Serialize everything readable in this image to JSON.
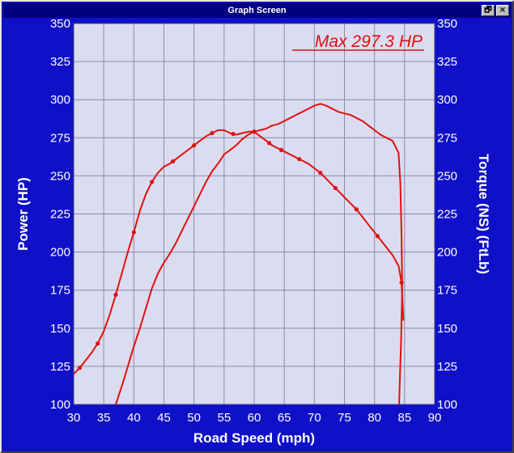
{
  "window": {
    "title": "Graph Screen",
    "buttons": [
      {
        "name": "restore-button",
        "glyph": "🗗"
      },
      {
        "name": "close-button",
        "glyph": "×"
      }
    ]
  },
  "colors": {
    "window_bg": "#1010c8",
    "plot_bg": "#dcdcf0",
    "grid": "#8a8aa8",
    "curve": "#e01010",
    "text": "#ffffff"
  },
  "chart_data": {
    "type": "line",
    "annotation": "Max 297.3 HP",
    "xlabel": "Road Speed (mph)",
    "ylabel_left": "Power (HP)",
    "ylabel_right": "Torque (NS) (FtLb)",
    "xlim": [
      30,
      90
    ],
    "ylim": [
      100,
      350
    ],
    "x_ticks": [
      30,
      35,
      40,
      45,
      50,
      55,
      60,
      65,
      70,
      75,
      80,
      85,
      90
    ],
    "y_ticks": [
      100,
      125,
      150,
      175,
      200,
      225,
      250,
      275,
      300,
      325,
      350
    ],
    "grid": true,
    "legend": "none",
    "series": [
      {
        "key": "torque",
        "color": "#e01010",
        "x": [
          30,
          31,
          32,
          33,
          34,
          35,
          36,
          37,
          38,
          39,
          40,
          41,
          42,
          43,
          44,
          45,
          46,
          47,
          48,
          49,
          50,
          51,
          52,
          53,
          54,
          55,
          56,
          57,
          58,
          59,
          60,
          61,
          62,
          63,
          64,
          65,
          66,
          67,
          68,
          69,
          70,
          71,
          72,
          73,
          74,
          75,
          76,
          77,
          78,
          79,
          80,
          81,
          82,
          83,
          84,
          84.5,
          84.8
        ],
        "y": [
          120,
          124,
          129,
          134,
          140,
          148,
          159,
          172,
          186,
          200,
          213,
          227,
          238,
          246,
          252,
          256,
          258,
          261,
          264,
          267,
          270,
          273,
          276,
          278,
          280,
          280,
          278,
          277,
          278,
          279,
          279,
          276,
          273,
          270,
          268,
          266,
          264,
          262,
          260,
          258,
          255,
          252,
          248,
          244,
          240,
          236,
          232,
          228,
          223,
          218,
          213,
          208,
          203,
          198,
          191,
          180,
          155
        ]
      },
      {
        "key": "power",
        "color": "#e01010",
        "x": [
          37,
          38,
          39,
          40,
          41,
          42,
          43,
          44,
          45,
          46,
          47,
          48,
          49,
          50,
          51,
          52,
          53,
          54,
          55,
          56,
          57,
          58,
          59,
          60,
          61,
          62,
          63,
          64,
          65,
          66,
          67,
          68,
          69,
          70,
          71,
          72,
          73,
          74,
          75,
          76,
          77,
          78,
          79,
          80,
          81,
          82,
          83,
          84,
          84.3,
          84.5,
          84.6,
          84.4,
          84.2,
          84.1
        ],
        "y": [
          100,
          112,
          125,
          138,
          150,
          163,
          176,
          186,
          193,
          199,
          206,
          214,
          222,
          230,
          238,
          246,
          253,
          258,
          264,
          267,
          270,
          274,
          277,
          279,
          280,
          281,
          283,
          284,
          286,
          288,
          290,
          292,
          294,
          296,
          297.3,
          296,
          294,
          292,
          291,
          290,
          288,
          286,
          283,
          280,
          277,
          275,
          273,
          265,
          245,
          210,
          175,
          140,
          115,
          100
        ]
      }
    ],
    "markers": {
      "torque_x": [
        31,
        34,
        37,
        40,
        43,
        46.5,
        50,
        53,
        56.5,
        60,
        62.5,
        64.5,
        67.5,
        71,
        73.5,
        77,
        80.5,
        84.5
      ]
    }
  }
}
